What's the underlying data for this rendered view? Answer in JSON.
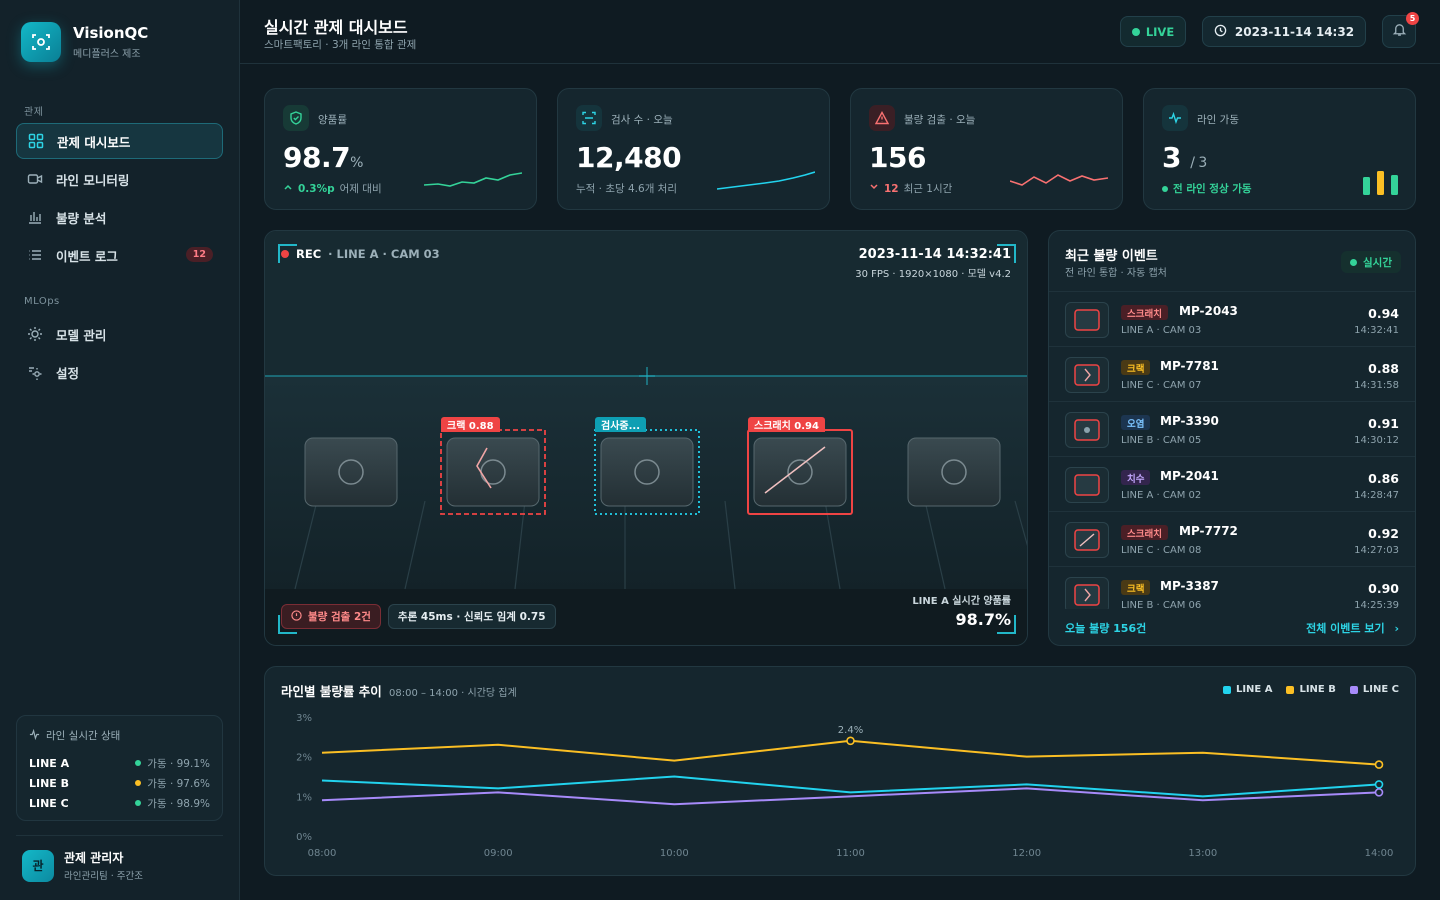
{
  "brand": {
    "name": "VisionQC",
    "sub": "메디플러스 제조"
  },
  "nav": {
    "section1": "관제",
    "section2": "MLOps",
    "items": [
      {
        "label": "관제 대시보드"
      },
      {
        "label": "라인 모니터링"
      },
      {
        "label": "불량 분석"
      },
      {
        "label": "이벤트 로그",
        "badge": "12"
      },
      {
        "label": "모델 관리"
      },
      {
        "label": "설정"
      }
    ]
  },
  "line_status": {
    "title": "라인 실시간 상태",
    "rows": [
      {
        "line": "LINE A",
        "status": "가동 · 99.1%",
        "color": "#34d399"
      },
      {
        "line": "LINE B",
        "status": "가동 · 97.6%",
        "color": "#fbbf24"
      },
      {
        "line": "LINE C",
        "status": "가동 · 98.9%",
        "color": "#34d399"
      }
    ]
  },
  "user": {
    "initial": "관",
    "name": "관제 관리자",
    "role": "라인관리팀 · 주간조"
  },
  "header": {
    "title": "실시간 관제 대시보드",
    "subtitle": "스마트팩토리 · 3개 라인 통합 관제",
    "live": "LIVE",
    "datetime": "2023-11-14 14:32",
    "notif_count": "5"
  },
  "kpis": [
    {
      "label": "양품률",
      "value": "98.7",
      "unit": "%",
      "delta": "0.3%p",
      "delta_note": "어제 대비"
    },
    {
      "label": "검사 수 · 오늘",
      "value": "12,480",
      "note": "누적 · 초당 4.6개 처리"
    },
    {
      "label": "불량 검출 · 오늘",
      "value": "156",
      "delta": "12",
      "delta_note": "최근 1시간"
    },
    {
      "label": "라인 가동",
      "value": "3",
      "unit": "/ 3",
      "note": "전 라인 정상 가동"
    }
  ],
  "camera": {
    "rec": "REC",
    "source": "· LINE A · CAM 03",
    "timestamp": "2023-11-14 14:32:41",
    "meta": "30 FPS · 1920×1080 · 모델 v4.2",
    "boxes": [
      {
        "label": "크랙 0.88"
      },
      {
        "label": "검사중..."
      },
      {
        "label": "스크래치 0.94"
      }
    ],
    "defect_chip": "불량 검출 2건",
    "infer_chip": "추론 45ms · 신뢰도 임계 0.75",
    "yield_label": "LINE A 실시간 양품률",
    "yield_value": "98.7%"
  },
  "events": {
    "title": "최근 불량 이벤트",
    "subtitle": "전 라인 통합 · 자동 캡처",
    "realtime": "실시간",
    "items": [
      {
        "tag": "스크래치",
        "id": "MP-2043",
        "loc": "LINE A · CAM 03",
        "score": "0.94",
        "time": "14:32:41"
      },
      {
        "tag": "크랙",
        "id": "MP-7781",
        "loc": "LINE C · CAM 07",
        "score": "0.88",
        "time": "14:31:58"
      },
      {
        "tag": "오염",
        "id": "MP-3390",
        "loc": "LINE B · CAM 05",
        "score": "0.91",
        "time": "14:30:12"
      },
      {
        "tag": "치수",
        "id": "MP-2041",
        "loc": "LINE A · CAM 02",
        "score": "0.86",
        "time": "14:28:47"
      },
      {
        "tag": "스크래치",
        "id": "MP-7772",
        "loc": "LINE C · CAM 08",
        "score": "0.92",
        "time": "14:27:03"
      },
      {
        "tag": "크랙",
        "id": "MP-3387",
        "loc": "LINE B · CAM 06",
        "score": "0.90",
        "time": "14:25:39"
      }
    ],
    "footer_count": "오늘 불량 156건",
    "footer_link": "전체 이벤트 보기"
  },
  "trend": {
    "title": "라인별 불량률 추이",
    "subtitle": "08:00 – 14:00 · 시간당 집계"
  },
  "chart_data": {
    "type": "line",
    "title": "라인별 불량률 추이",
    "x": [
      "08:00",
      "09:00",
      "10:00",
      "11:00",
      "12:00",
      "13:00",
      "14:00"
    ],
    "yticks": [
      "0%",
      "1%",
      "2%",
      "3%"
    ],
    "ylim": [
      0,
      3
    ],
    "series": [
      {
        "name": "LINE A",
        "color": "#22d3ee",
        "values": [
          1.4,
          1.2,
          1.5,
          1.1,
          1.3,
          1.0,
          1.3
        ]
      },
      {
        "name": "LINE B",
        "color": "#fbbf24",
        "values": [
          2.1,
          2.3,
          1.9,
          2.4,
          2.0,
          2.1,
          1.8
        ]
      },
      {
        "name": "LINE C",
        "color": "#a78bfa",
        "values": [
          0.9,
          1.1,
          0.8,
          1.0,
          1.2,
          0.9,
          1.1
        ]
      }
    ],
    "annotation": "2.4%",
    "legend": "top-right",
    "grid": false
  }
}
